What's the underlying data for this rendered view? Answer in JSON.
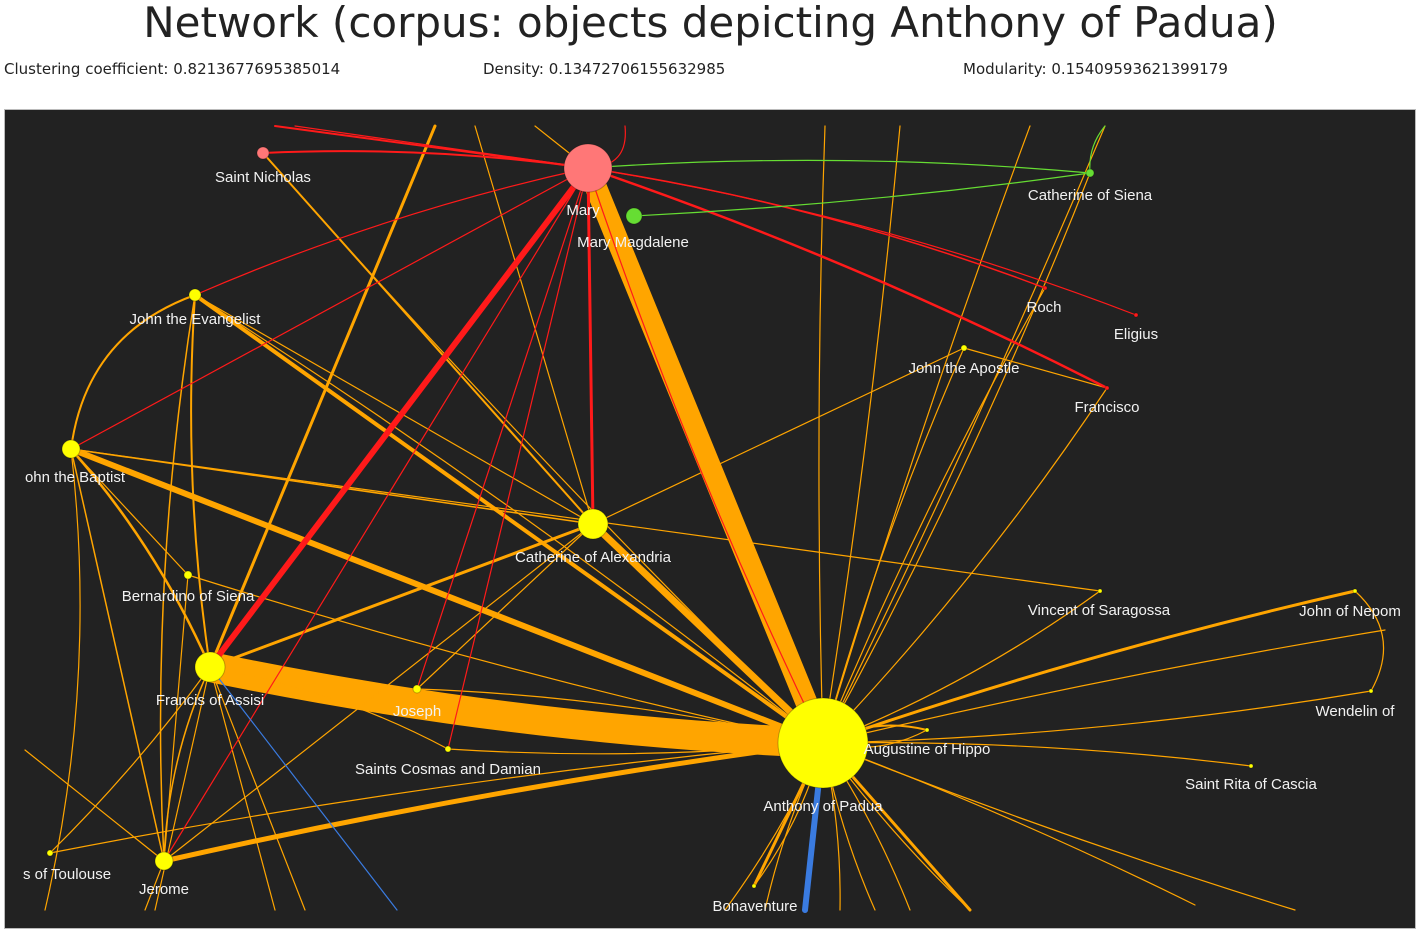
{
  "title": "Network (corpus: objects depicting Anthony of Padua)",
  "stats": {
    "clustering": "Clustering coefficient: 0.8213677695385014",
    "density": "Density: 0.13472706155632985",
    "modularity": "Modularity: 0.15409593621399179"
  },
  "colors": {
    "background": "#222222",
    "orange": "#ffa500",
    "red": "#ff1a1a",
    "yellow": "#ffff00",
    "pink": "#ff7777",
    "green": "#66dd33",
    "blue": "#3a7be0"
  },
  "nodes": [
    {
      "id": "mary",
      "label": "Mary",
      "color": "pink"
    },
    {
      "id": "nicholas",
      "label": "Saint Nicholas",
      "color": "pink"
    },
    {
      "id": "magdalene",
      "label": "Mary Magdalene",
      "color": "green"
    },
    {
      "id": "cat_siena",
      "label": "Catherine of Siena",
      "color": "green"
    },
    {
      "id": "roch",
      "label": "Roch",
      "color": "red"
    },
    {
      "id": "eligius",
      "label": "Eligius",
      "color": "red"
    },
    {
      "id": "francisco",
      "label": "Francisco",
      "color": "red"
    },
    {
      "id": "john_ev",
      "label": "John the Evangelist",
      "color": "yellow"
    },
    {
      "id": "john_ap",
      "label": "John the Apostle",
      "color": "yellow"
    },
    {
      "id": "john_bap",
      "label": "ohn the Baptist",
      "color": "yellow"
    },
    {
      "id": "cat_alex",
      "label": "Catherine of Alexandria",
      "color": "yellow"
    },
    {
      "id": "bernardino",
      "label": "Bernardino of Siena",
      "color": "yellow"
    },
    {
      "id": "vincent",
      "label": "Vincent of Saragossa",
      "color": "yellow"
    },
    {
      "id": "nepomuk",
      "label": "John of Nepom",
      "color": "yellow"
    },
    {
      "id": "francis",
      "label": "Francis of Assisi",
      "color": "yellow"
    },
    {
      "id": "joseph",
      "label": "Joseph",
      "color": "yellow"
    },
    {
      "id": "wendelin",
      "label": "Wendelin of",
      "color": "yellow"
    },
    {
      "id": "augustine",
      "label": "Augustine of Hippo",
      "color": "yellow"
    },
    {
      "id": "cosmas",
      "label": "Saints Cosmas and Damian",
      "color": "yellow"
    },
    {
      "id": "rita",
      "label": "Saint Rita of Cascia",
      "color": "yellow"
    },
    {
      "id": "anthony",
      "label": "Anthony of Padua",
      "color": "yellow"
    },
    {
      "id": "toulouse",
      "label": "s of Toulouse",
      "color": "yellow"
    },
    {
      "id": "jerome",
      "label": "Jerome",
      "color": "yellow"
    },
    {
      "id": "bonaventure",
      "label": "Bonaventure",
      "color": "yellow"
    }
  ]
}
